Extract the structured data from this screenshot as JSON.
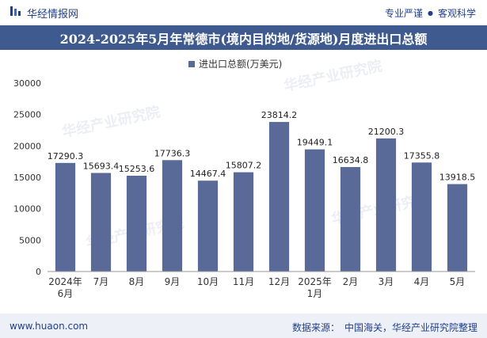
{
  "header": {
    "brand": "华经情报网",
    "tagline_left": "专业严谨",
    "tagline_sep": "●",
    "tagline_right": "客观科学"
  },
  "title": "2024-2025年5月年常德市(境内目的地/货源地)月度进出口总额",
  "footer": {
    "website": "www.huaon.com",
    "source_label": "数据来源：",
    "source_value": "中国海关，华经产业研究院整理"
  },
  "watermark": "华经产业研究院",
  "watermark_url": "www.huaon.com",
  "colors": {
    "bar": "#5a6a98",
    "title_bg": "#3e5a8f",
    "brand": "#1f3f8a"
  },
  "chart_data": {
    "type": "bar",
    "legend": "进出口总额(万美元)",
    "categories": [
      [
        "2024年",
        "6月"
      ],
      [
        "7月"
      ],
      [
        "8月"
      ],
      [
        "9月"
      ],
      [
        "10月"
      ],
      [
        "11月"
      ],
      [
        "12月"
      ],
      [
        "2025年",
        "1月"
      ],
      [
        "2月"
      ],
      [
        "3月"
      ],
      [
        "4月"
      ],
      [
        "5月"
      ]
    ],
    "values": [
      17290.3,
      15693.4,
      15253.6,
      17736.3,
      14467.4,
      15807.2,
      23814.2,
      19449.1,
      16634.8,
      21200.3,
      17355.8,
      13918.5
    ],
    "value_labels": [
      "17290.3",
      "15693.4",
      "15253.6",
      "17736.3",
      "14467.4",
      "15807.2",
      "23814.2",
      "19449.1",
      "16634.8",
      "21200.3",
      "17355.8",
      "13918.5"
    ],
    "yticks": [
      "0",
      "5000",
      "10000",
      "15000",
      "20000",
      "25000",
      "30000"
    ],
    "ylim": [
      0,
      30000
    ]
  }
}
